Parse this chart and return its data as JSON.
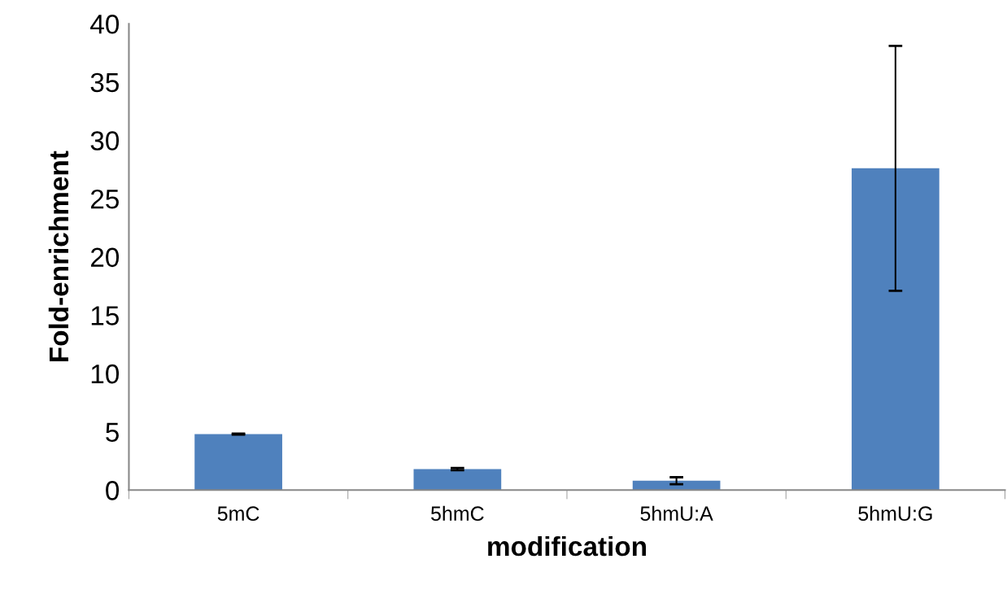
{
  "chart_data": {
    "type": "bar",
    "xlabel": "modification",
    "ylabel": "Fold-enrichment",
    "categories": [
      "5mC",
      "5hmC",
      "5hmU:A",
      "5hmU:G"
    ],
    "values": [
      4.8,
      1.8,
      0.8,
      27.6
    ],
    "errors": [
      0.05,
      0.1,
      0.3,
      10.5
    ],
    "color": "#4f81bd",
    "ylim": [
      0,
      40
    ],
    "yticks": [
      0,
      5,
      10,
      15,
      20,
      25,
      30,
      35,
      40
    ],
    "grid": false
  }
}
